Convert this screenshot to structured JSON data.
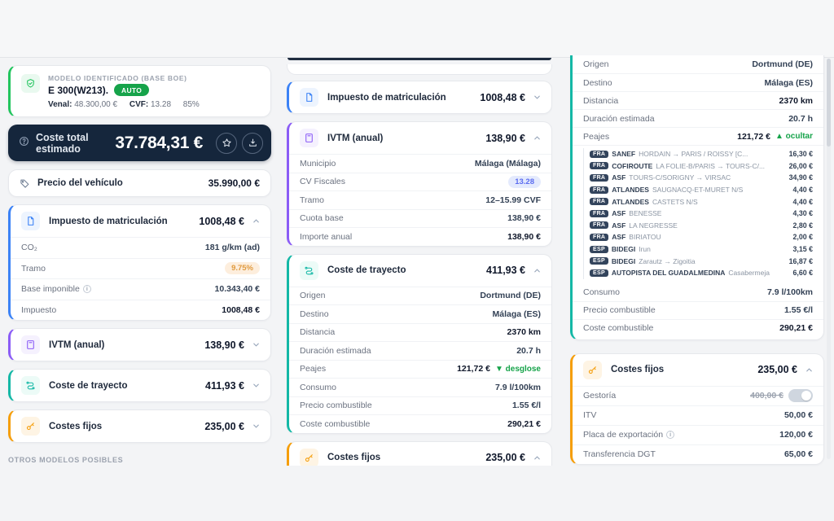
{
  "accents": {
    "green": "#22c55e",
    "blue": "#3b82f6",
    "purple": "#8b5cf6",
    "teal": "#14b8a6",
    "orange": "#f59e0b",
    "navy": "#15263c",
    "link_green": "#16a34a"
  },
  "left": {
    "model": {
      "eyebrow": "MODELO IDENTIFICADO (BASE BOE)",
      "name": "E 300(W213).",
      "badge": "AUTO",
      "venal_label": "Venal:",
      "venal_value": "48.300,00 €",
      "cvf_label": "CVF:",
      "cvf_value": "13.28",
      "pct": "85%"
    },
    "total": {
      "label": "Coste total estimado",
      "value": "37.784,31 €"
    },
    "price": {
      "label": "Precio del vehículo",
      "value": "35.990,00 €"
    },
    "impuesto": {
      "title": "Impuesto de matriculación",
      "value": "1008,48 €",
      "rows": [
        {
          "label": "CO₂",
          "value": "181 g/km (ad)"
        },
        {
          "label": "Tramo",
          "badge": "9.75%",
          "badge_style": "orange"
        },
        {
          "label": "Base imponible",
          "info": true,
          "value": "10.343,40 €"
        },
        {
          "label": "Impuesto",
          "value": "1008,48 €",
          "bold": true
        }
      ]
    },
    "ivtm_collapsed": {
      "title": "IVTM (anual)",
      "value": "138,90 €"
    },
    "trayecto_collapsed": {
      "title": "Coste de trayecto",
      "value": "411,93 €"
    },
    "fijos_collapsed": {
      "title": "Costes fijos",
      "value": "235,00 €"
    },
    "footer_label": "OTROS MODELOS POSIBLES"
  },
  "middle": {
    "impuesto_collapsed": {
      "title": "Impuesto de matriculación",
      "value": "1008,48 €"
    },
    "ivtm": {
      "title": "IVTM (anual)",
      "value": "138,90 €",
      "rows": [
        {
          "label": "Municipio",
          "value": "Málaga (Málaga)"
        },
        {
          "label": "CV Fiscales",
          "badge": "13.28",
          "badge_style": "blue"
        },
        {
          "label": "Tramo",
          "value": "12–15.99 CVF"
        },
        {
          "label": "Cuota base",
          "value": "138,90 €"
        },
        {
          "label": "Importe anual",
          "value": "138,90 €",
          "bold": true
        }
      ]
    },
    "trayecto": {
      "title": "Coste de trayecto",
      "value": "411,93 €",
      "rows": [
        {
          "label": "Origen",
          "value": "Dortmund (DE)"
        },
        {
          "label": "Destino",
          "value": "Málaga (ES)"
        },
        {
          "label": "Distancia",
          "value": "2370 km",
          "bold": true
        },
        {
          "label": "Duración estimada",
          "value": "20.7 h"
        },
        {
          "label": "Peajes",
          "value": "121,72 €",
          "bold": true,
          "link": "▼ desglose"
        },
        {
          "label": "Consumo",
          "value": "7.9 l/100km"
        },
        {
          "label": "Precio combustible",
          "value": "1.55 €/l"
        },
        {
          "label": "Coste combustible",
          "value": "290,21 €",
          "bold": true
        }
      ]
    },
    "fijos_header": {
      "title": "Costes fijos",
      "value": "235,00 €"
    }
  },
  "right": {
    "trayecto_top_rows": [
      {
        "label": "Origen",
        "value": "Dortmund (DE)"
      },
      {
        "label": "Destino",
        "value": "Málaga (ES)"
      },
      {
        "label": "Distancia",
        "value": "2370 km",
        "bold": true
      },
      {
        "label": "Duración estimada",
        "value": "20.7 h"
      },
      {
        "label": "Peajes",
        "value": "121,72 €",
        "bold": true,
        "link": "▲ ocultar"
      }
    ],
    "tolls": [
      {
        "country": "FRA",
        "operator": "SANEF",
        "route": "HORDAIN → PARIS / ROISSY [C...",
        "price": "16,30 €"
      },
      {
        "country": "FRA",
        "operator": "COFIROUTE",
        "route": "LA FOLIE-B/PARIS → TOURS-C/...",
        "price": "26,00 €"
      },
      {
        "country": "FRA",
        "operator": "ASF",
        "route": "TOURS-C/SORIGNY → VIRSAC",
        "price": "34,90 €"
      },
      {
        "country": "FRA",
        "operator": "ATLANDES",
        "route": "SAUGNACQ-ET-MURET N/S",
        "price": "4,40 €"
      },
      {
        "country": "FRA",
        "operator": "ATLANDES",
        "route": "CASTETS N/S",
        "price": "4,40 €"
      },
      {
        "country": "FRA",
        "operator": "ASF",
        "route": "BENESSE",
        "price": "4,30 €"
      },
      {
        "country": "FRA",
        "operator": "ASF",
        "route": "LA NEGRESSE",
        "price": "2,80 €"
      },
      {
        "country": "FRA",
        "operator": "ASF",
        "route": "BIRIATOU",
        "price": "2,00 €"
      },
      {
        "country": "ESP",
        "operator": "BIDEGI",
        "route": "Irun",
        "price": "3,15 €"
      },
      {
        "country": "ESP",
        "operator": "BIDEGI",
        "route": "Zarautz → Zigoitia",
        "price": "16,87 €"
      },
      {
        "country": "ESP",
        "operator": "AUTOPISTA DEL GUADALMEDINA",
        "route": "Casabermeja",
        "price": "6,60 €"
      }
    ],
    "trayecto_bottom_rows": [
      {
        "label": "Consumo",
        "value": "7.9 l/100km"
      },
      {
        "label": "Precio combustible",
        "value": "1.55 €/l"
      },
      {
        "label": "Coste combustible",
        "value": "290,21 €",
        "bold": true
      }
    ],
    "fijos": {
      "title": "Costes fijos",
      "value": "235,00 €",
      "rows": [
        {
          "label": "Gestoría",
          "value": "400,00 €",
          "strike": true,
          "toggle": true
        },
        {
          "label": "ITV",
          "value": "50,00 €"
        },
        {
          "label": "Placa de exportación",
          "info": true,
          "value": "120,00 €"
        },
        {
          "label": "Transferencia DGT",
          "value": "65,00 €"
        }
      ]
    }
  }
}
